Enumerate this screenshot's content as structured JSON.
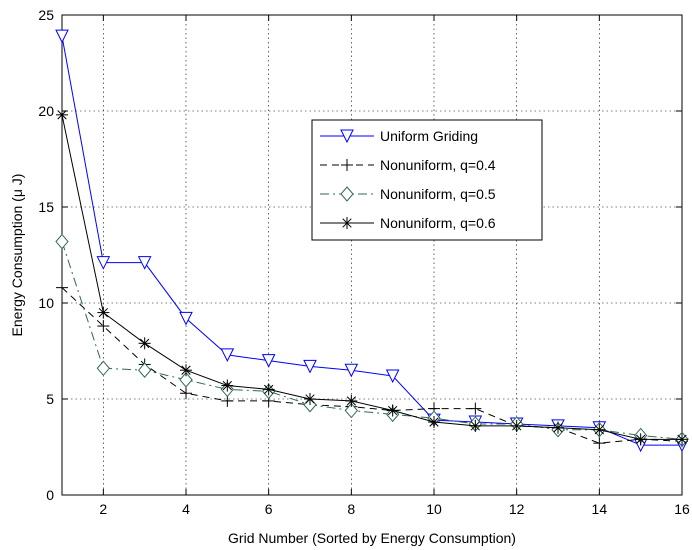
{
  "chart_data": {
    "type": "line",
    "title": "",
    "xlabel": "Grid Number (Sorted by Energy Consumption)",
    "ylabel": "Energy Consumption (μ J)",
    "xlim": [
      1,
      16
    ],
    "ylim": [
      0,
      25
    ],
    "xticks": [
      2,
      4,
      6,
      8,
      10,
      12,
      14,
      16
    ],
    "yticks": [
      0,
      5,
      10,
      15,
      20,
      25
    ],
    "grid": true,
    "legend_position": "upper-right-center",
    "x": [
      1,
      2,
      3,
      4,
      5,
      6,
      7,
      8,
      9,
      10,
      11,
      12,
      13,
      14,
      15,
      16
    ],
    "series": [
      {
        "name": "Uniform Griding",
        "color": "#0000ff",
        "dash": "solid",
        "marker": "triangle-down",
        "values": [
          23.9,
          12.1,
          12.1,
          9.2,
          7.3,
          7.0,
          6.7,
          6.5,
          6.2,
          3.9,
          3.8,
          3.7,
          3.6,
          3.5,
          2.6,
          2.6
        ]
      },
      {
        "name": "Nonuniform, q=0.4",
        "color": "#000000",
        "dash": "dashed",
        "marker": "plus",
        "values": [
          10.8,
          8.8,
          6.8,
          5.3,
          4.9,
          4.9,
          4.7,
          4.6,
          4.4,
          4.5,
          4.5,
          3.6,
          3.5,
          2.7,
          2.9,
          2.8
        ]
      },
      {
        "name": "Nonuniform, q=0.5",
        "color": "#2e6b4f",
        "dash": "dashdot",
        "marker": "diamond",
        "values": [
          13.2,
          6.6,
          6.5,
          6.0,
          5.5,
          5.4,
          4.7,
          4.4,
          4.2,
          4.0,
          3.7,
          3.7,
          3.4,
          3.4,
          3.1,
          2.9
        ]
      },
      {
        "name": "Nonuniform, q=0.6",
        "color": "#000000",
        "dash": "solid",
        "marker": "asterisk",
        "values": [
          19.8,
          9.5,
          7.9,
          6.5,
          5.7,
          5.5,
          5.0,
          4.9,
          4.4,
          3.8,
          3.6,
          3.6,
          3.5,
          3.4,
          2.9,
          2.9
        ]
      }
    ]
  }
}
